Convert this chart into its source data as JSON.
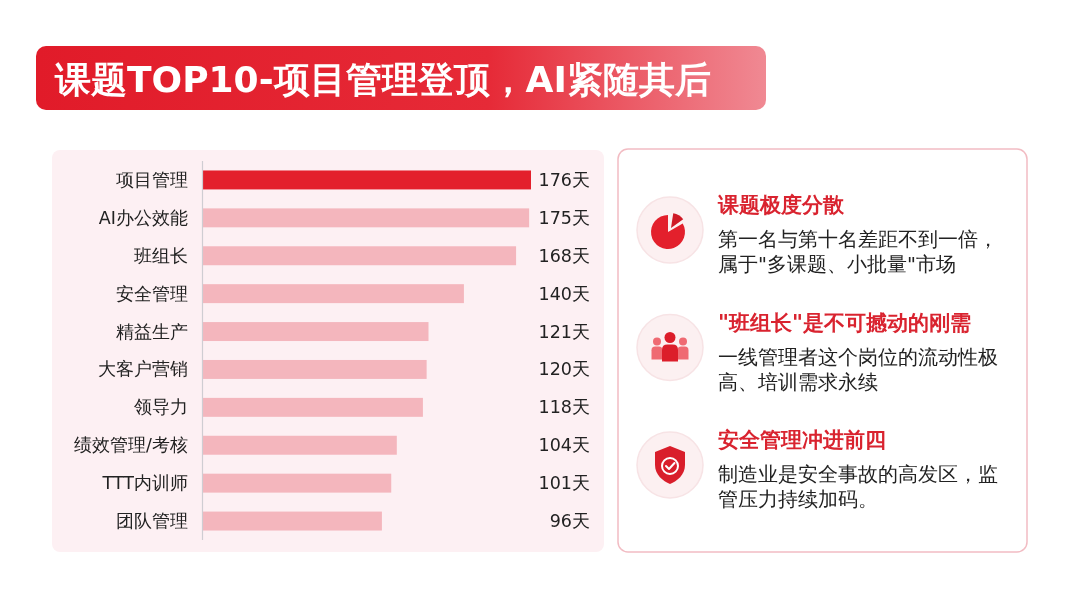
{
  "chart_data": [
    {
      "type": "bar",
      "orientation": "horizontal",
      "title": "课题TOP10-项目管理登顶，AI紧随其后",
      "tick_labels": "y",
      "categories": [
        "项目管理",
        "AI办公效能",
        "班组长",
        "安全管理",
        "精益生产",
        "大客户营销",
        "领导力",
        "绩效管理/考核",
        "TTT内训师",
        "团队管理"
      ],
      "values": [
        176,
        175,
        168,
        140,
        121,
        120,
        118,
        104,
        101,
        96
      ],
      "colors": [
        "#e3202c",
        "#f4b6bd",
        "#f4b6bd",
        "#f4b6bd",
        "#f4b6bd",
        "#f4b6bd",
        "#f4b6bd",
        "#f4b6bd",
        "#f4b6bd",
        "#f4b6bd"
      ],
      "value_labels": [
        "176天",
        "175天",
        "168天",
        "140天",
        "121天",
        "120天",
        "118天",
        "104天",
        "101天",
        "96天"
      ]
    },
    {
      "type": "other",
      "annotations": [
        "课题极度分散",
        "第一名与第十名差距不到一倍，属于\"多课题、小批量\"市场",
        "\"班组长\"是不可撼动的刚需",
        "一线管理者这个岗位的流动性极高、培训需求永续",
        "安全管理冲进前四",
        "制造业是安全事故的高发区，监管压力持续加码。"
      ]
    }
  ]
}
